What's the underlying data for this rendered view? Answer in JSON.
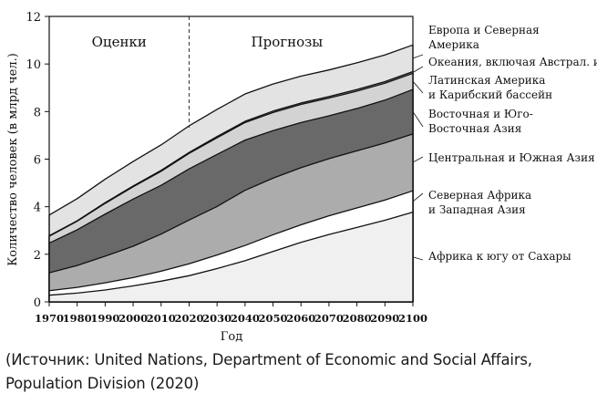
{
  "chart_data": {
    "type": "area",
    "stacked": true,
    "x": [
      1970,
      1980,
      1990,
      2000,
      2010,
      2020,
      2030,
      2040,
      2050,
      2060,
      2070,
      2080,
      2090,
      2100
    ],
    "series": [
      {
        "name": "Африка к югу от Сахары",
        "color": "#f0f0f0",
        "values": [
          0.28,
          0.37,
          0.5,
          0.67,
          0.87,
          1.1,
          1.4,
          1.73,
          2.12,
          2.5,
          2.83,
          3.13,
          3.43,
          3.77
        ]
      },
      {
        "name": "Северная Африка и Западная Азия",
        "color": "#ffffff",
        "values": [
          0.19,
          0.24,
          0.3,
          0.35,
          0.42,
          0.5,
          0.57,
          0.64,
          0.7,
          0.74,
          0.79,
          0.82,
          0.85,
          0.9
        ]
      },
      {
        "name": "Центральная и Южная Азия",
        "color": "#acacac",
        "values": [
          0.75,
          0.92,
          1.12,
          1.32,
          1.56,
          1.84,
          2.04,
          2.32,
          2.38,
          2.4,
          2.4,
          2.4,
          2.4,
          2.39
        ]
      },
      {
        "name": "Восточная и Юго-Восточная Азия",
        "color": "#696969",
        "values": [
          1.25,
          1.5,
          1.77,
          1.98,
          2.05,
          2.15,
          2.19,
          2.11,
          2.0,
          1.9,
          1.8,
          1.78,
          1.8,
          1.87
        ]
      },
      {
        "name": "Латинская Америка и Карибский бассейн",
        "color": "#d3d3d3",
        "values": [
          0.29,
          0.36,
          0.45,
          0.52,
          0.59,
          0.65,
          0.7,
          0.74,
          0.76,
          0.76,
          0.75,
          0.73,
          0.71,
          0.68
        ]
      },
      {
        "name": "Океания, включая Австрал. и НЗ",
        "color": "#a2a2a2",
        "values": [
          0.02,
          0.02,
          0.03,
          0.03,
          0.04,
          0.04,
          0.05,
          0.05,
          0.06,
          0.06,
          0.06,
          0.07,
          0.07,
          0.07
        ]
      },
      {
        "name": "Европа и Северная Америка",
        "color": "#e3e3e3",
        "values": [
          0.87,
          0.93,
          0.99,
          1.03,
          1.07,
          1.12,
          1.14,
          1.15,
          1.14,
          1.13,
          1.12,
          1.12,
          1.12,
          1.12
        ]
      }
    ],
    "legend_labels": [
      [
        "Европа и Северная",
        "Америка"
      ],
      [
        "Океания, включая Австрал. и НЗ"
      ],
      [
        "Латинская Америка",
        "и Карибский бассейн"
      ],
      [
        "Восточная и Юго-",
        "Восточная Азия"
      ],
      [
        "Центральная и Южная Азия"
      ],
      [
        "Северная Африка",
        "и Западная Азия"
      ],
      [
        "Африка к югу от Сахары"
      ]
    ],
    "legend_series_index": [
      6,
      5,
      4,
      3,
      2,
      1,
      0
    ],
    "ylim": [
      0,
      12
    ],
    "xlim": [
      1970,
      2100
    ],
    "yticks": [
      0,
      2,
      4,
      6,
      8,
      10,
      12
    ],
    "xticks": [
      1970,
      1980,
      1990,
      2000,
      2010,
      2020,
      2030,
      2040,
      2050,
      2060,
      2070,
      2080,
      2090,
      2100
    ],
    "xlabel": "Год",
    "ylabel": "Количество человек (в млрд чел.)",
    "divider_year": 2020,
    "region_labels": [
      {
        "text": "Оценки",
        "at_year": 1995
      },
      {
        "text": "Прогнозы",
        "at_year": 2055
      }
    ],
    "grid": false,
    "legend_position": "right"
  },
  "source_text": "(Источник: United Nations, Department of Economic and Social Affairs, Population Division (2020)"
}
